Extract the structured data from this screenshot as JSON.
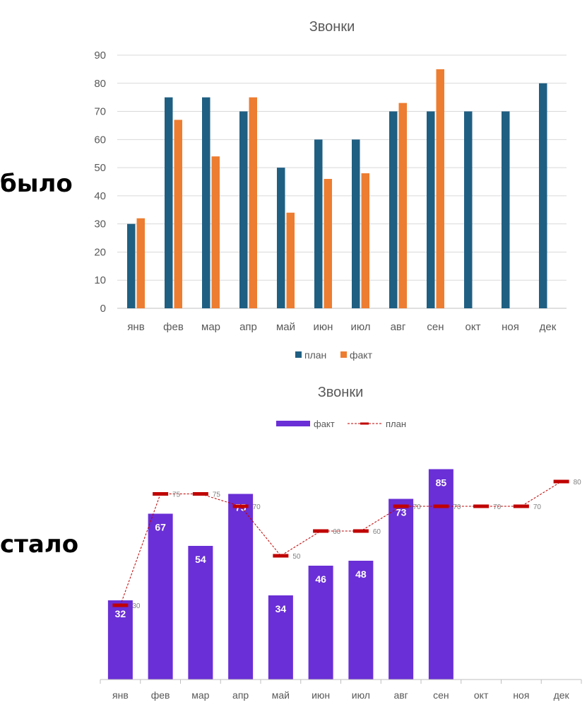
{
  "labels": {
    "before": "было",
    "after": "стало"
  },
  "chart_data": [
    {
      "type": "bar",
      "title": "Звонки",
      "categories": [
        "янв",
        "фев",
        "мар",
        "апр",
        "май",
        "июн",
        "июл",
        "авг",
        "сен",
        "окт",
        "ноя",
        "дек"
      ],
      "series": [
        {
          "name": "план",
          "color": "#1f5f82",
          "values": [
            30,
            75,
            75,
            70,
            50,
            60,
            60,
            70,
            70,
            70,
            70,
            80
          ]
        },
        {
          "name": "факт",
          "color": "#ed7d31",
          "values": [
            32,
            67,
            54,
            75,
            34,
            46,
            48,
            73,
            85,
            null,
            null,
            null
          ]
        }
      ],
      "ylim": [
        0,
        90
      ],
      "yticks": [
        "0",
        "10",
        "20",
        "30",
        "40",
        "50",
        "60",
        "70",
        "80",
        "90"
      ],
      "grid": true,
      "legend": "bottom"
    },
    {
      "type": "bar",
      "title": "Звонки",
      "categories": [
        "янв",
        "фев",
        "мар",
        "апр",
        "май",
        "июн",
        "июл",
        "авг",
        "сен",
        "окт",
        "ноя",
        "дек"
      ],
      "series": [
        {
          "name": "факт",
          "kind": "bar",
          "color": "#6a2fd6",
          "values": [
            32,
            67,
            54,
            75,
            34,
            46,
            48,
            73,
            85,
            null,
            null,
            null
          ]
        },
        {
          "name": "план",
          "kind": "line-markers",
          "color": "#c00000",
          "values": [
            30,
            75,
            75,
            70,
            50,
            60,
            60,
            70,
            70,
            70,
            70,
            80
          ]
        }
      ],
      "ylim": [
        0,
        90
      ],
      "grid": false,
      "legend": "top"
    }
  ]
}
